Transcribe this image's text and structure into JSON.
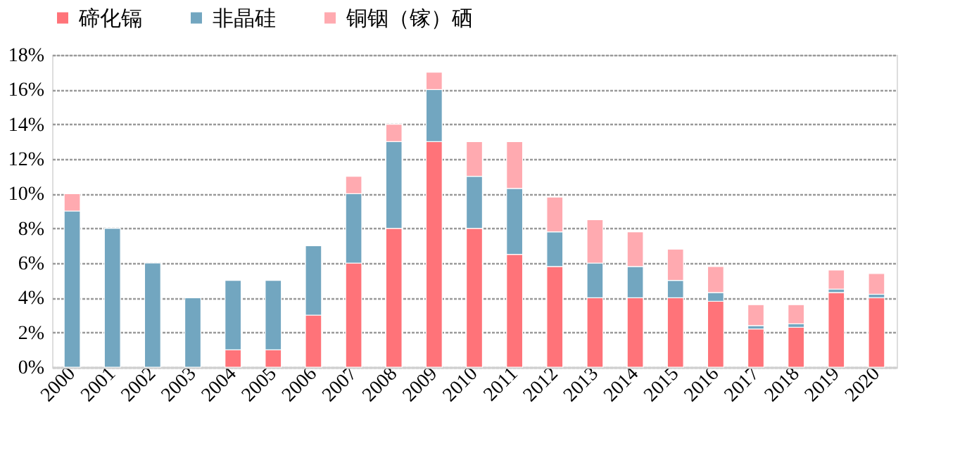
{
  "chart_data": {
    "type": "bar",
    "stacked": true,
    "legend": "top",
    "grid": "y",
    "categories": [
      "2000",
      "2001",
      "2002",
      "2003",
      "2004",
      "2005",
      "2006",
      "2007",
      "2008",
      "2009",
      "2010",
      "2011",
      "2012",
      "2013",
      "2014",
      "2015",
      "2016",
      "2017",
      "2018",
      "2019",
      "2020"
    ],
    "series": [
      {
        "name": "碲化镉",
        "color": "#ff7379",
        "values": [
          null,
          null,
          null,
          null,
          1,
          1,
          3,
          6,
          8,
          13,
          8,
          6.5,
          5.8,
          4,
          4,
          4,
          3.8,
          2.2,
          2.3,
          4.3,
          4
        ]
      },
      {
        "name": "非晶硅",
        "color": "#72a6c0",
        "values": [
          9,
          8,
          6,
          4,
          4,
          4,
          4,
          4,
          5,
          3,
          3,
          3.8,
          2.0,
          2,
          1.8,
          1,
          0.5,
          0.2,
          0.2,
          0.2,
          0.2
        ]
      },
      {
        "name": "铜铟（镓）硒",
        "color": "#ffaab0",
        "values": [
          1,
          null,
          null,
          null,
          null,
          null,
          null,
          1,
          1,
          1,
          2,
          2.7,
          2.0,
          2.5,
          2.0,
          1.8,
          1.5,
          1.2,
          1.1,
          1.1,
          1.2
        ]
      }
    ],
    "ylim": [
      0,
      18
    ],
    "yticks": [
      {
        "value": 0,
        "label": "0%"
      },
      {
        "value": 2,
        "label": "2%"
      },
      {
        "value": 4,
        "label": "4%"
      },
      {
        "value": 6,
        "label": "6%"
      },
      {
        "value": 8,
        "label": "8%"
      },
      {
        "value": 10,
        "label": "10%"
      },
      {
        "value": 12,
        "label": "12%"
      },
      {
        "value": 14,
        "label": "14%"
      },
      {
        "value": 16,
        "label": "16%"
      },
      {
        "value": 18,
        "label": "18%"
      }
    ]
  }
}
